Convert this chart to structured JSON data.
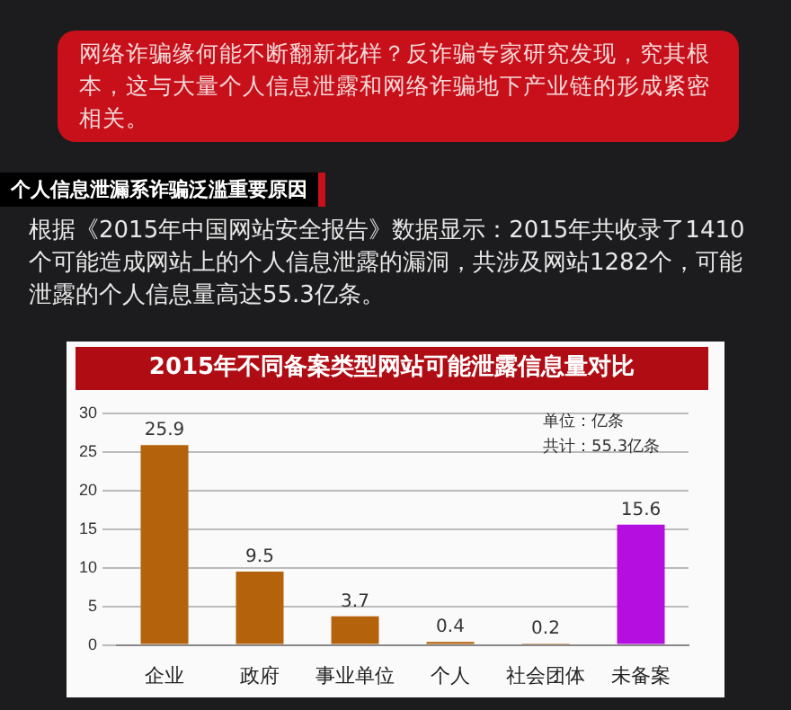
{
  "chart_data": {
    "type": "bar",
    "title": "2015年不同备案类型网站可能泄露信息量对比",
    "categories": [
      "企业",
      "政府",
      "事业单位",
      "个人",
      "社会团体",
      "未备案"
    ],
    "values": [
      25.9,
      9.5,
      3.7,
      0.4,
      0.2,
      15.6
    ],
    "colors": [
      "#b5620c",
      "#b5620c",
      "#b5620c",
      "#b5620c",
      "#b5620c",
      "#b40fe0"
    ],
    "ylim": [
      0,
      30
    ],
    "yticks": [
      0,
      5,
      10,
      15,
      20,
      25,
      30
    ],
    "grid": "y",
    "legend": false,
    "data_labels": true,
    "annotations": [
      "网络诈骗缘何能不断翻新花样？反诈骗专家研究发现，究其根本，这与大量个人信息泄露和网络诈骗地下产业链的形成紧密相关。",
      "个人信息泄漏系诈骗泛滥重要原因",
      "根据《2015年中国网站安全报告》数据显示：2015年共收录了1410个可能造成网站上的个人信息泄露的漏洞，共涉及网站1282个，可能泄露的个人信息量高达55.3亿条。",
      "单位：亿条",
      "共计：55.3亿条"
    ]
  }
}
